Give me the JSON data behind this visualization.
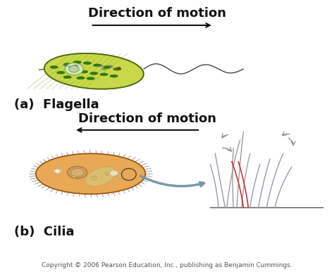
{
  "bg_color": "#ffffff",
  "title_a": "Direction of motion",
  "title_b": "Direction of motion",
  "label_a": "(a)  Flagella",
  "label_b": "(b)  Cilia",
  "copyright": "Copyright © 2006 Pearson Education, Inc., publishing as Benjamin Cummings.",
  "title_fontsize": 13,
  "label_fontsize": 13,
  "copyright_fontsize": 6.5
}
